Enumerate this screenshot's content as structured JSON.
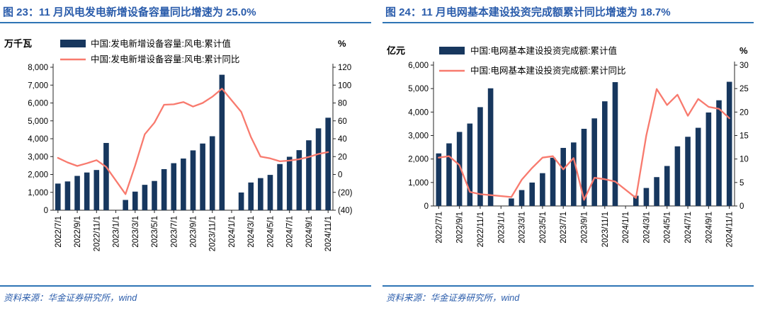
{
  "page": {
    "source_note": "资料来源：华金证券研究所，wind"
  },
  "charts": [
    {
      "title": "图 23：11 月风电发电新增设备容量同比增速为 25.0%",
      "source": "资料来源：华金证券研究所，wind",
      "chart_data": {
        "type": "combo-bar-line",
        "unit_left": "万千瓦",
        "unit_right": "%",
        "legend": [
          "中国:发电新增设备容量:风电:累计值",
          "中国:发电新增设备容量:风电:累计同比"
        ],
        "categories": [
          "2022/7/1",
          "2022/8/1",
          "2022/9/1",
          "2022/10/1",
          "2022/11/1",
          "2022/12/1",
          "2023/1/1",
          "2023/2/1",
          "2023/3/1",
          "2023/4/1",
          "2023/5/1",
          "2023/6/1",
          "2023/7/1",
          "2023/8/1",
          "2023/9/1",
          "2023/10/1",
          "2023/11/1",
          "2023/12/1",
          "2024/1/1",
          "2024/2/1",
          "2024/3/1",
          "2024/4/1",
          "2024/5/1",
          "2024/6/1",
          "2024/7/1",
          "2024/8/1",
          "2024/9/1",
          "2024/10/1",
          "2024/11/1"
        ],
        "series": [
          {
            "name": "中国:发电新增设备容量:风电:累计值",
            "type": "bar",
            "axis": "left",
            "values": [
              1490,
              1610,
              1920,
              2110,
              2250,
              3763,
              null,
              574,
              1040,
              1420,
              1636,
              2299,
              2631,
              2892,
              3348,
              3731,
              4139,
              7580,
              null,
              990,
              1550,
              1796,
              1976,
              2584,
              2991,
              3361,
              3912,
              4580,
              5175
            ]
          },
          {
            "name": "中国:发电新增设备容量:风电:累计同比",
            "type": "line",
            "axis": "right",
            "values": [
              18.5,
              13.5,
              9.5,
              12.5,
              16,
              8.5,
              null,
              -22,
              10,
              45,
              58,
              78,
              78.5,
              81,
              76,
              80,
              87,
              96,
              null,
              70,
              42,
              20,
              18,
              14.7,
              15.5,
              17,
              19.6,
              23,
              25
            ]
          }
        ],
        "y_left": {
          "min": 0,
          "max": 8000,
          "labels": [
            "8,000",
            "7,000",
            "6,000",
            "5,000",
            "4,000",
            "3,000",
            "2,000",
            "1,000",
            "0"
          ]
        },
        "y_right": {
          "min": -40,
          "max": 120,
          "labels": [
            "120",
            "100",
            "80",
            "60",
            "40",
            "20",
            "0",
            "(20)",
            "(40)"
          ]
        },
        "x_tick_every": 2,
        "grid": false,
        "legend_position": "top"
      }
    },
    {
      "title": "图 24：11 月电网基本建设投资完成额累计同比增速为 18.7%",
      "source": "资料来源：华金证券研究所，wind",
      "chart_data": {
        "type": "combo-bar-line",
        "unit_left": "亿元",
        "unit_right": "%",
        "legend": [
          "中国:电网基本建设投资完成额:累计值",
          "中国:电网基本建设投资完成额:累计同比"
        ],
        "categories": [
          "2022/7/1",
          "2022/8/1",
          "2022/9/1",
          "2022/10/1",
          "2022/11/1",
          "2022/12/1",
          "2023/1/1",
          "2023/2/1",
          "2023/3/1",
          "2023/4/1",
          "2023/5/1",
          "2023/6/1",
          "2023/7/1",
          "2023/8/1",
          "2023/9/1",
          "2023/10/1",
          "2023/11/1",
          "2023/12/1",
          "2024/1/1",
          "2024/2/1",
          "2024/3/1",
          "2024/4/1",
          "2024/5/1",
          "2024/6/1",
          "2024/7/1",
          "2024/8/1",
          "2024/9/1",
          "2024/10/1",
          "2024/11/1"
        ],
        "series": [
          {
            "name": "中国:电网基本建设投资完成额:累计值",
            "type": "bar",
            "axis": "left",
            "values": [
              2239,
              2667,
              3154,
              3511,
              4209,
              5012,
              null,
              319,
              677,
              997,
              1397,
              2054,
              2473,
              2705,
              3287,
              3731,
              4458,
              5275,
              null,
              436,
              766,
              1229,
              1703,
              2540,
              2947,
              3330,
              3982,
              4502,
              5290
            ]
          },
          {
            "name": "中国:电网基本建设投资完成额:累计同比",
            "type": "line",
            "axis": "right",
            "values": [
              10.3,
              10.6,
              8.7,
              3.0,
              2.5,
              2.3,
              null,
              1.9,
              5.6,
              8.1,
              10.3,
              10.6,
              7.8,
              10.2,
              1.3,
              6.0,
              5.7,
              5.2,
              null,
              1.7,
              15.0,
              24.9,
              21.5,
              23.7,
              19.2,
              22.8,
              21.1,
              20.7,
              18.7
            ]
          }
        ],
        "y_left": {
          "min": 0,
          "max": 6000,
          "labels": [
            "6,000",
            "5,000",
            "4,000",
            "3,000",
            "2,000",
            "1,000",
            "0"
          ]
        },
        "y_right": {
          "min": 0,
          "max": 30,
          "labels": [
            "30",
            "25",
            "20",
            "15",
            "10",
            "5",
            "0"
          ]
        },
        "x_tick_every": 2,
        "grid": false,
        "legend_position": "top"
      }
    }
  ],
  "colors": {
    "bar": "#17375e",
    "line": "#f87a6e",
    "title_blue": "#2a5cab",
    "rule_blue": "#2e74b5",
    "axis": "#262626",
    "label_text": "#000000"
  }
}
